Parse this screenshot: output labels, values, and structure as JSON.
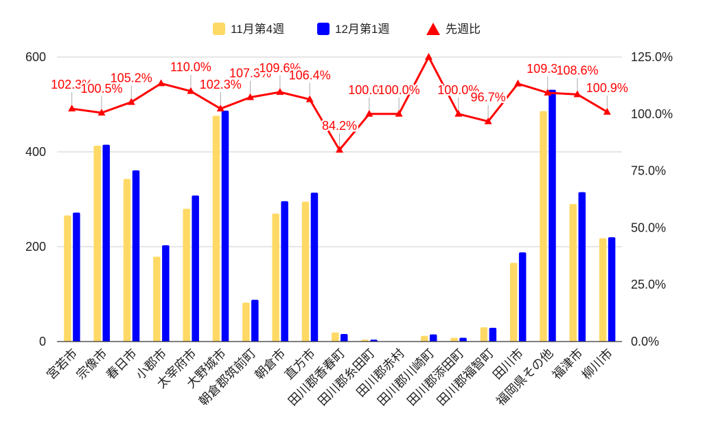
{
  "chart_data": {
    "type": "bar",
    "categories": [
      "宮若市",
      "宗像市",
      "春日市",
      "小郡市",
      "太宰府市",
      "大野城市",
      "朝倉郡筑前町",
      "朝倉市",
      "直方市",
      "田川郡香春町",
      "田川郡糸田町",
      "田川郡赤村",
      "田川郡川崎町",
      "田川郡添田町",
      "田川郡福智町",
      "田川市",
      "福岡県その他",
      "福津市",
      "柳川市"
    ],
    "series": [
      {
        "name": "11月第4週",
        "type": "bar",
        "axis": "left",
        "color": "#ffd966",
        "values": [
          266,
          413,
          343,
          179,
          280,
          476,
          82,
          270,
          295,
          19,
          4,
          0,
          12,
          8,
          30,
          166,
          486,
          290,
          218
        ]
      },
      {
        "name": "12月第1週",
        "type": "bar",
        "axis": "left",
        "color": "#0000ff",
        "values": [
          272,
          415,
          361,
          203,
          308,
          487,
          88,
          296,
          314,
          16,
          4,
          0,
          15,
          8,
          29,
          188,
          531,
          315,
          220
        ]
      },
      {
        "name": "先週比",
        "type": "line",
        "axis": "right",
        "color": "#ff0000",
        "marker": "triangle",
        "values": [
          102.3,
          100.5,
          105.2,
          113.4,
          110.0,
          102.3,
          107.3,
          109.6,
          106.4,
          84.2,
          100.0,
          100.0,
          125.0,
          100.0,
          96.7,
          113.3,
          109.3,
          108.6,
          100.9
        ],
        "data_labels": [
          "102.3%",
          "100.5%",
          "105.2%",
          null,
          "110.0%",
          "102.3%",
          "107.3%",
          "109.6%",
          "106.4%",
          "84.2%",
          "100.0%",
          "100.0%",
          null,
          "100.0%",
          "96.7%",
          null,
          "109.3%",
          "108.6%",
          "100.9%"
        ]
      }
    ],
    "y_left": {
      "min": 0,
      "max": 600,
      "ticks": [
        0,
        200,
        400,
        600
      ],
      "tick_labels": [
        "0",
        "200",
        "400",
        "600"
      ]
    },
    "y_right": {
      "min": 0,
      "max": 125,
      "ticks": [
        0,
        25,
        50,
        75,
        100,
        125
      ],
      "tick_labels": [
        "0.0%",
        "25.0%",
        "50.0%",
        "75.0%",
        "100.0%",
        "125.0%"
      ]
    },
    "grid": true,
    "legend": "top"
  }
}
